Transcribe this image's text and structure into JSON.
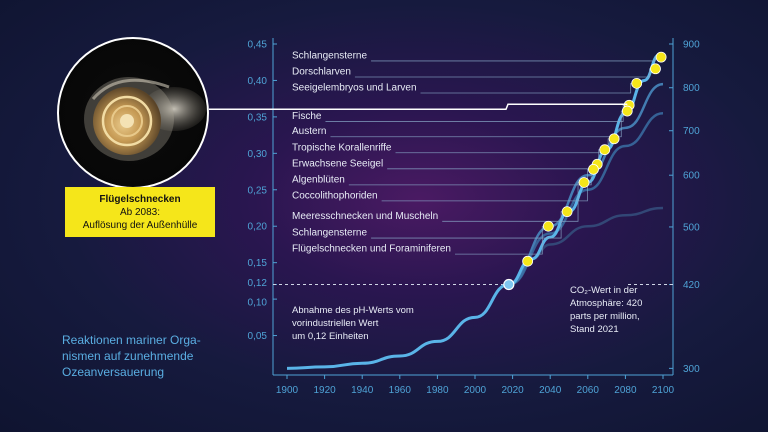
{
  "caption": "Reaktionen mariner Orga-\nnismen auf zunehmende\nOzeanversauerung",
  "species_box": {
    "title": "Flügelschnecken",
    "line2": "Ab 2083:",
    "line3": "Auflösung der Außenhülle"
  },
  "photo": {
    "alt_icon": "pteropod-shell-photo"
  },
  "colors": {
    "accent": "#4fa3d6",
    "curve": "#5ab4e8",
    "dots": "#f5e61a",
    "box": "#f5e61a",
    "caption": "#5aaee2"
  },
  "chart_data": {
    "type": "line",
    "x_range": [
      1900,
      2100
    ],
    "x_ticks": [
      "1900",
      "1920",
      "1940",
      "1960",
      "1980",
      "2000",
      "2020",
      "2040",
      "2060",
      "2080",
      "2100"
    ],
    "y_left_range": [
      0.0,
      0.45
    ],
    "y_left_ticks": [
      {
        "v": 0.45,
        "label": "0,45"
      },
      {
        "v": 0.4,
        "label": "0,40"
      },
      {
        "v": 0.35,
        "label": "0,35"
      },
      {
        "v": 0.3,
        "label": "0,30"
      },
      {
        "v": 0.25,
        "label": "0,25"
      },
      {
        "v": 0.2,
        "label": "0,20"
      },
      {
        "v": 0.15,
        "label": "0,15"
      },
      {
        "v": 0.12,
        "label": "0,12"
      },
      {
        "v": 0.1,
        "label": "0,10"
      },
      {
        "v": 0.05,
        "label": "0,05"
      }
    ],
    "y_right_ticks": [
      {
        "v": 900,
        "label": "900",
        "y_equiv": 0.45
      },
      {
        "v": 800,
        "label": "800",
        "y_equiv": 0.39
      },
      {
        "v": 700,
        "label": "700",
        "y_equiv": 0.331
      },
      {
        "v": 600,
        "label": "600",
        "y_equiv": 0.27
      },
      {
        "v": 500,
        "label": "500",
        "y_equiv": 0.199
      },
      {
        "v": 420,
        "label": "420",
        "y_equiv": 0.12
      },
      {
        "v": 300,
        "label": "300",
        "y_equiv": 0.005
      }
    ],
    "main_curve": [
      [
        1900,
        0.005
      ],
      [
        1920,
        0.007
      ],
      [
        1940,
        0.012
      ],
      [
        1960,
        0.022
      ],
      [
        1980,
        0.042
      ],
      [
        2000,
        0.075
      ],
      [
        2018,
        0.12
      ],
      [
        2030,
        0.155
      ],
      [
        2040,
        0.185
      ],
      [
        2050,
        0.22
      ],
      [
        2060,
        0.26
      ],
      [
        2070,
        0.305
      ],
      [
        2080,
        0.355
      ],
      [
        2090,
        0.4
      ],
      [
        2098,
        0.435
      ]
    ],
    "secondary_curves": [
      [
        [
          2018,
          0.12
        ],
        [
          2040,
          0.2
        ],
        [
          2060,
          0.27
        ],
        [
          2080,
          0.335
        ],
        [
          2100,
          0.395
        ]
      ],
      [
        [
          2018,
          0.12
        ],
        [
          2040,
          0.19
        ],
        [
          2060,
          0.25
        ],
        [
          2080,
          0.31
        ],
        [
          2100,
          0.355
        ]
      ],
      [
        [
          2030,
          0.155
        ],
        [
          2040,
          0.175
        ],
        [
          2060,
          0.2
        ],
        [
          2080,
          0.215
        ],
        [
          2100,
          0.225
        ]
      ]
    ],
    "current_point": {
      "x": 2018,
      "y": 0.12
    },
    "dashed_line_y": 0.12,
    "organisms": [
      {
        "label": "Schlangensterne",
        "x": 2099,
        "y": 0.432,
        "row_y": 0.435
      },
      {
        "label": "Dorschlarven",
        "x": 2096,
        "y": 0.416,
        "row_y": 0.413
      },
      {
        "label": "Seeigelembryos und Larven",
        "x": 2086,
        "y": 0.396,
        "row_y": 0.391
      },
      {
        "label": "Fische",
        "x": 2082,
        "y": 0.366,
        "row_y": 0.352
      },
      {
        "label": "Austern",
        "x": 2081,
        "y": 0.358,
        "row_y": 0.331
      },
      {
        "label": "Tropische Korallenriffe",
        "x": 2074,
        "y": 0.32,
        "row_y": 0.309
      },
      {
        "label": "Erwachsene Seeigel",
        "x": 2069,
        "y": 0.305,
        "row_y": 0.287
      },
      {
        "label": "Algenblüten",
        "x": 2065,
        "y": 0.285,
        "row_y": 0.265
      },
      {
        "label": "Coccolithophoriden",
        "x": 2063,
        "y": 0.278,
        "row_y": 0.243
      },
      {
        "label": "Meeresschnecken und Muscheln",
        "x": 2058,
        "y": 0.26,
        "row_y": 0.215
      },
      {
        "label": "Schlangensterne",
        "x": 2049,
        "y": 0.22,
        "row_y": 0.192
      },
      {
        "label": "Flügelschnecken und Foraminiferen",
        "x": 2039,
        "y": 0.2,
        "row_y": 0.17
      },
      {
        "label": "",
        "x": 2028,
        "y": 0.152,
        "row_y": 0.152
      }
    ],
    "highlight_row_y": 0.366,
    "annotations": {
      "left_note": [
        "Abnahme des pH-Werts vom",
        "vorindustriellen Wert",
        "um 0,12 Einheiten"
      ],
      "right_note": [
        "CO₂-Wert in der",
        "Atmosphäre: 420",
        "parts per million,",
        "Stand 2021"
      ]
    }
  }
}
